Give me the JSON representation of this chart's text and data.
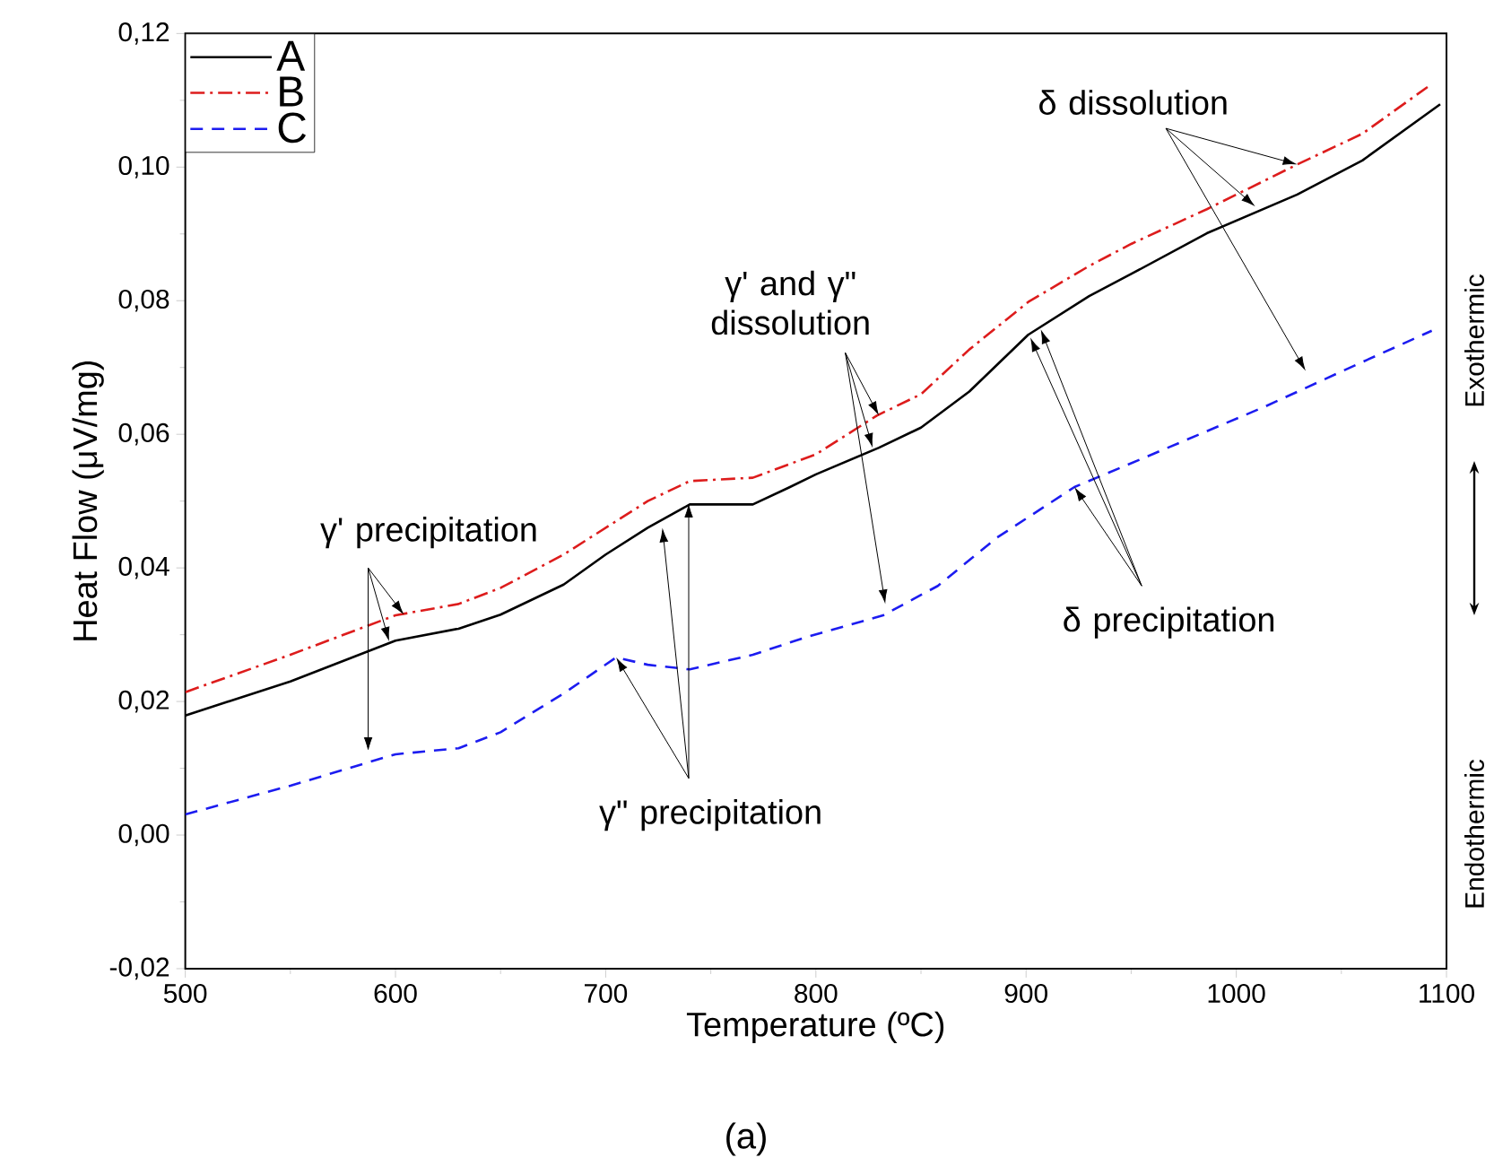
{
  "chart_data": {
    "type": "line",
    "xlabel": "Temperature (ºC)",
    "ylabel": "Heat Flow (μV/mg)",
    "xlim": [
      500,
      1100
    ],
    "xticks": [
      500,
      600,
      700,
      800,
      900,
      1000,
      1100
    ],
    "ylim": [
      -0.02,
      0.12
    ],
    "yticks": [
      {
        "value": -0.02,
        "label": "-0,02"
      },
      {
        "value": 0,
        "label": "0,00"
      },
      {
        "value": 0.02,
        "label": "0,02"
      },
      {
        "value": 0.04,
        "label": "0,04"
      },
      {
        "value": 0.06,
        "label": "0,06"
      },
      {
        "value": 0.08,
        "label": "0,08"
      },
      {
        "value": 0.1,
        "label": "0,10"
      },
      {
        "value": 0.12,
        "label": "0,12"
      }
    ],
    "legend": "top left",
    "marker": "none",
    "grid": false,
    "series": [
      {
        "name": "A",
        "color": "#000000",
        "line_style": "solid",
        "x": [
          500,
          550,
          600,
          630,
          650,
          680,
          700,
          720,
          740,
          770,
          787,
          800,
          830,
          850,
          873,
          901,
          930,
          950,
          986,
          1029,
          1060,
          1097
        ],
        "values": [
          0.0179,
          0.023,
          0.0291,
          0.0309,
          0.033,
          0.0375,
          0.042,
          0.046,
          0.0495,
          0.0495,
          0.052,
          0.054,
          0.058,
          0.061,
          0.0664,
          0.0749,
          0.0807,
          0.084,
          0.0901,
          0.0959,
          0.101,
          0.1094
        ]
      },
      {
        "name": "B",
        "color": "#dd1c1c",
        "line_style": "dashdot",
        "x": [
          500,
          550,
          600,
          630,
          650,
          680,
          700,
          720,
          740,
          770,
          800,
          829,
          850,
          873,
          901,
          930,
          950,
          986,
          1029,
          1060,
          1091
        ],
        "values": [
          0.0214,
          0.027,
          0.0329,
          0.0346,
          0.037,
          0.042,
          0.046,
          0.05,
          0.053,
          0.0535,
          0.057,
          0.0628,
          0.066,
          0.0727,
          0.0798,
          0.0852,
          0.0885,
          0.0937,
          0.1004,
          0.105,
          0.112
        ]
      },
      {
        "name": "C",
        "color": "#1c1cf0",
        "line_style": "dashed",
        "x": [
          500,
          550,
          600,
          630,
          650,
          680,
          705,
          720,
          740,
          770,
          796,
          832,
          858,
          886,
          923,
          957,
          1014,
          1057,
          1093
        ],
        "values": [
          0.0031,
          0.0074,
          0.0121,
          0.013,
          0.0154,
          0.0212,
          0.0266,
          0.0255,
          0.0248,
          0.027,
          0.0297,
          0.0329,
          0.0373,
          0.0445,
          0.0521,
          0.0566,
          0.0642,
          0.0704,
          0.0755
        ]
      }
    ],
    "annotations": [
      {
        "text": "γ' precipitation",
        "x": 604,
        "y": 0.033
      },
      {
        "text": "γ\" precipitation",
        "x": 705,
        "y": 0.0266
      },
      {
        "text": "γ' and γ\" dissolution",
        "x": 830,
        "y": 0.0628
      },
      {
        "text": "δ dissolution",
        "x": 1029,
        "y": 0.1004
      },
      {
        "text": "δ precipitation",
        "x": 923,
        "y": 0.0521
      },
      "Exothermic",
      "Endothermic",
      "(a)"
    ]
  }
}
